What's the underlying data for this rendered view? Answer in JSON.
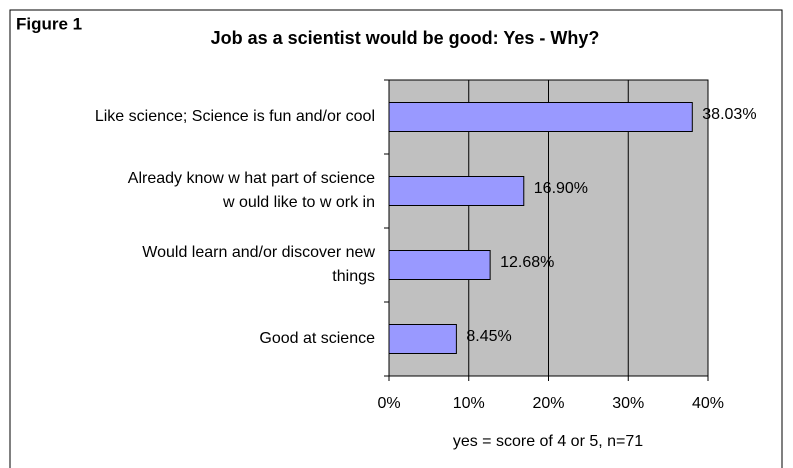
{
  "chart_data": {
    "type": "barh",
    "figure_label": "Figure 1",
    "title": "Job as a scientist would be good: Yes  -  Why?",
    "x_label": "yes = score of 4 or 5, n=71",
    "categories": [
      [
        "Like science; Science is fun and/or cool"
      ],
      [
        "Already know  w hat part of science",
        "w ould like to w ork in"
      ],
      [
        "Would learn and/or discover new",
        "things"
      ],
      [
        "Good at science"
      ]
    ],
    "values": [
      38.03,
      16.9,
      12.68,
      8.45
    ],
    "value_labels": [
      "38.03%",
      "16.90%",
      "12.68%",
      "8.45%"
    ],
    "color": "#9999ff",
    "plot_background": "#c0c0c0",
    "xlim": [
      0,
      40
    ],
    "xticks": [
      {
        "value": 0,
        "label": "0%"
      },
      {
        "value": 10,
        "label": "10%"
      },
      {
        "value": 20,
        "label": "20%"
      },
      {
        "value": 30,
        "label": "30%"
      },
      {
        "value": 40,
        "label": "40%"
      }
    ],
    "grid": true
  }
}
